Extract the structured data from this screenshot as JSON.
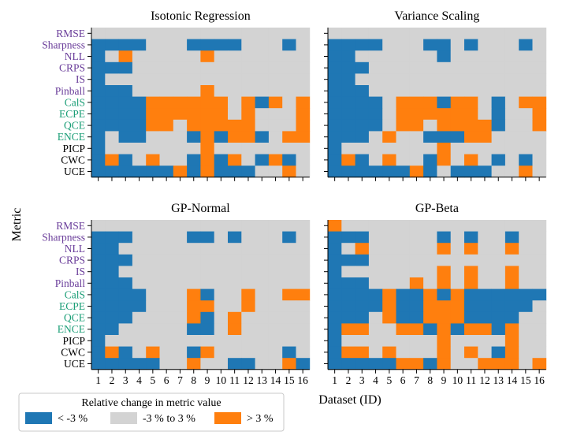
{
  "chart_data": {
    "type": "heatmap",
    "ylabel": "Metric",
    "xlabel": "Dataset (ID)",
    "x_categories": [
      "1",
      "2",
      "3",
      "4",
      "5",
      "6",
      "7",
      "8",
      "9",
      "10",
      "11",
      "12",
      "13",
      "14",
      "15",
      "16"
    ],
    "metrics": [
      {
        "name": "RMSE",
        "group": "accuracy"
      },
      {
        "name": "Sharpness",
        "group": "accuracy"
      },
      {
        "name": "NLL",
        "group": "accuracy"
      },
      {
        "name": "CRPS",
        "group": "accuracy"
      },
      {
        "name": "IS",
        "group": "accuracy"
      },
      {
        "name": "Pinball",
        "group": "accuracy"
      },
      {
        "name": "CalS",
        "group": "calibration"
      },
      {
        "name": "ECPE",
        "group": "calibration"
      },
      {
        "name": "QCE",
        "group": "calibration"
      },
      {
        "name": "ENCE",
        "group": "calibration"
      },
      {
        "name": "PICP",
        "group": "interval"
      },
      {
        "name": "CWC",
        "group": "interval"
      },
      {
        "name": "UCE",
        "group": "interval"
      }
    ],
    "label_colors": {
      "accuracy": "#6a3d9a",
      "calibration": "#1b9e77",
      "interval": "#000000"
    },
    "cell_colors": {
      "-1": "#1f77b4",
      "0": "#d3d3d3",
      "1": "#ff7f0e"
    },
    "legend": {
      "title": "Relative change in metric value",
      "entries": [
        {
          "label": "< -3 %",
          "value": -1
        },
        {
          "label": "-3 % to 3 %",
          "value": 0
        },
        {
          "label": "> 3 %",
          "value": 1
        }
      ],
      "placement": "bottom-left"
    },
    "panels": [
      {
        "title": "Isotonic Regression",
        "grid": [
          [
            0,
            0,
            0,
            0,
            0,
            0,
            0,
            0,
            0,
            0,
            0,
            0,
            0,
            0,
            0,
            0
          ],
          [
            -1,
            -1,
            -1,
            -1,
            0,
            0,
            0,
            -1,
            -1,
            -1,
            -1,
            0,
            0,
            0,
            -1,
            0
          ],
          [
            -1,
            0,
            1,
            0,
            0,
            0,
            0,
            0,
            1,
            0,
            0,
            0,
            0,
            0,
            0,
            0
          ],
          [
            -1,
            -1,
            -1,
            0,
            0,
            0,
            0,
            0,
            0,
            0,
            0,
            0,
            0,
            0,
            0,
            0
          ],
          [
            -1,
            0,
            0,
            0,
            0,
            0,
            0,
            0,
            0,
            0,
            0,
            0,
            0,
            0,
            0,
            0
          ],
          [
            -1,
            -1,
            -1,
            0,
            0,
            0,
            0,
            0,
            1,
            0,
            0,
            0,
            0,
            0,
            0,
            0
          ],
          [
            -1,
            -1,
            -1,
            -1,
            1,
            1,
            1,
            1,
            1,
            1,
            0,
            1,
            -1,
            1,
            0,
            1
          ],
          [
            -1,
            -1,
            -1,
            -1,
            1,
            1,
            1,
            1,
            1,
            1,
            0,
            1,
            0,
            0,
            0,
            1
          ],
          [
            -1,
            -1,
            -1,
            -1,
            1,
            1,
            0,
            1,
            1,
            1,
            1,
            1,
            0,
            0,
            0,
            1
          ],
          [
            -1,
            0,
            -1,
            -1,
            0,
            0,
            0,
            -1,
            1,
            -1,
            1,
            1,
            -1,
            0,
            1,
            1
          ],
          [
            -1,
            0,
            0,
            0,
            0,
            0,
            0,
            0,
            1,
            0,
            0,
            0,
            0,
            0,
            0,
            0
          ],
          [
            -1,
            1,
            -1,
            0,
            1,
            0,
            0,
            -1,
            1,
            -1,
            1,
            0,
            -1,
            1,
            -1,
            0
          ],
          [
            -1,
            -1,
            -1,
            -1,
            -1,
            -1,
            1,
            -1,
            1,
            -1,
            -1,
            -1,
            0,
            0,
            1,
            0
          ]
        ]
      },
      {
        "title": "Variance Scaling",
        "grid": [
          [
            0,
            0,
            0,
            0,
            0,
            0,
            0,
            0,
            0,
            0,
            0,
            0,
            0,
            0,
            0,
            0
          ],
          [
            -1,
            -1,
            -1,
            -1,
            0,
            0,
            0,
            -1,
            -1,
            0,
            -1,
            0,
            0,
            0,
            -1,
            0
          ],
          [
            -1,
            -1,
            0,
            0,
            0,
            0,
            0,
            0,
            -1,
            0,
            0,
            0,
            0,
            0,
            0,
            0
          ],
          [
            -1,
            -1,
            -1,
            0,
            0,
            0,
            0,
            0,
            0,
            0,
            0,
            0,
            0,
            0,
            0,
            0
          ],
          [
            -1,
            -1,
            0,
            0,
            0,
            0,
            0,
            0,
            0,
            0,
            0,
            0,
            0,
            0,
            0,
            0
          ],
          [
            -1,
            -1,
            -1,
            0,
            0,
            0,
            0,
            0,
            0,
            0,
            0,
            0,
            0,
            0,
            0,
            0
          ],
          [
            -1,
            -1,
            -1,
            -1,
            0,
            1,
            1,
            1,
            -1,
            1,
            1,
            0,
            -1,
            0,
            1,
            1
          ],
          [
            -1,
            -1,
            -1,
            -1,
            0,
            1,
            1,
            1,
            1,
            1,
            1,
            0,
            -1,
            0,
            0,
            1
          ],
          [
            -1,
            -1,
            -1,
            -1,
            0,
            1,
            1,
            0,
            1,
            1,
            1,
            1,
            -1,
            0,
            0,
            1
          ],
          [
            -1,
            -1,
            -1,
            0,
            1,
            0,
            0,
            -1,
            -1,
            -1,
            1,
            1,
            0,
            0,
            0,
            0
          ],
          [
            -1,
            0,
            0,
            0,
            0,
            0,
            0,
            0,
            1,
            0,
            0,
            0,
            0,
            0,
            0,
            0
          ],
          [
            -1,
            1,
            -1,
            0,
            1,
            0,
            0,
            -1,
            1,
            0,
            1,
            0,
            -1,
            0,
            -1,
            0
          ],
          [
            -1,
            -1,
            -1,
            -1,
            -1,
            -1,
            1,
            -1,
            0,
            -1,
            -1,
            -1,
            0,
            0,
            1,
            0
          ]
        ]
      },
      {
        "title": "GP-Normal",
        "grid": [
          [
            0,
            0,
            0,
            0,
            0,
            0,
            0,
            0,
            0,
            0,
            0,
            0,
            0,
            0,
            0,
            0
          ],
          [
            -1,
            -1,
            -1,
            0,
            0,
            0,
            0,
            -1,
            -1,
            0,
            -1,
            0,
            0,
            0,
            -1,
            0
          ],
          [
            -1,
            -1,
            0,
            0,
            0,
            0,
            0,
            0,
            0,
            0,
            0,
            0,
            0,
            0,
            0,
            0
          ],
          [
            -1,
            -1,
            -1,
            0,
            0,
            0,
            0,
            0,
            0,
            0,
            0,
            0,
            0,
            0,
            0,
            0
          ],
          [
            -1,
            -1,
            0,
            0,
            0,
            0,
            0,
            0,
            0,
            0,
            0,
            0,
            0,
            0,
            0,
            0
          ],
          [
            -1,
            -1,
            -1,
            0,
            0,
            0,
            0,
            0,
            0,
            0,
            0,
            0,
            0,
            0,
            0,
            0
          ],
          [
            -1,
            -1,
            -1,
            -1,
            0,
            0,
            0,
            1,
            -1,
            0,
            0,
            1,
            0,
            0,
            1,
            1
          ],
          [
            -1,
            -1,
            -1,
            -1,
            0,
            0,
            0,
            1,
            1,
            0,
            0,
            1,
            0,
            0,
            0,
            0
          ],
          [
            -1,
            -1,
            -1,
            0,
            0,
            0,
            0,
            1,
            -1,
            0,
            1,
            0,
            0,
            0,
            0,
            0
          ],
          [
            -1,
            -1,
            0,
            0,
            0,
            0,
            0,
            -1,
            -1,
            0,
            1,
            0,
            0,
            0,
            0,
            0
          ],
          [
            -1,
            0,
            0,
            0,
            0,
            0,
            0,
            0,
            0,
            0,
            0,
            0,
            0,
            0,
            0,
            0
          ],
          [
            -1,
            1,
            -1,
            0,
            1,
            0,
            0,
            -1,
            1,
            0,
            0,
            0,
            0,
            0,
            -1,
            0
          ],
          [
            -1,
            -1,
            -1,
            -1,
            -1,
            0,
            0,
            1,
            0,
            0,
            -1,
            -1,
            0,
            0,
            1,
            -1
          ]
        ]
      },
      {
        "title": "GP-Beta",
        "grid": [
          [
            1,
            0,
            0,
            0,
            0,
            0,
            0,
            0,
            0,
            0,
            0,
            0,
            0,
            0,
            0,
            0
          ],
          [
            -1,
            -1,
            -1,
            0,
            0,
            0,
            0,
            0,
            -1,
            0,
            -1,
            0,
            0,
            -1,
            0,
            0
          ],
          [
            -1,
            0,
            1,
            0,
            0,
            0,
            0,
            0,
            1,
            0,
            1,
            0,
            0,
            1,
            0,
            0
          ],
          [
            -1,
            -1,
            -1,
            0,
            0,
            0,
            0,
            0,
            0,
            0,
            0,
            0,
            0,
            0,
            0,
            0
          ],
          [
            -1,
            0,
            0,
            0,
            0,
            0,
            0,
            0,
            1,
            0,
            1,
            0,
            0,
            1,
            0,
            0
          ],
          [
            -1,
            -1,
            -1,
            0,
            0,
            0,
            1,
            0,
            1,
            0,
            1,
            0,
            0,
            1,
            0,
            0
          ],
          [
            -1,
            -1,
            -1,
            -1,
            1,
            -1,
            -1,
            1,
            -1,
            1,
            -1,
            -1,
            -1,
            -1,
            -1,
            -1
          ],
          [
            -1,
            -1,
            -1,
            -1,
            1,
            -1,
            -1,
            1,
            1,
            1,
            -1,
            -1,
            -1,
            -1,
            -1,
            0
          ],
          [
            -1,
            -1,
            -1,
            0,
            1,
            -1,
            -1,
            1,
            1,
            1,
            -1,
            -1,
            -1,
            -1,
            0,
            0
          ],
          [
            -1,
            1,
            1,
            0,
            0,
            1,
            1,
            -1,
            1,
            -1,
            1,
            1,
            -1,
            1,
            0,
            0
          ],
          [
            -1,
            0,
            0,
            0,
            0,
            0,
            0,
            0,
            1,
            0,
            0,
            0,
            0,
            1,
            0,
            0
          ],
          [
            -1,
            1,
            1,
            0,
            1,
            0,
            0,
            0,
            1,
            0,
            1,
            0,
            -1,
            1,
            0,
            0
          ],
          [
            -1,
            -1,
            -1,
            -1,
            -1,
            1,
            1,
            -1,
            1,
            0,
            0,
            1,
            1,
            1,
            0,
            1
          ]
        ]
      }
    ]
  }
}
